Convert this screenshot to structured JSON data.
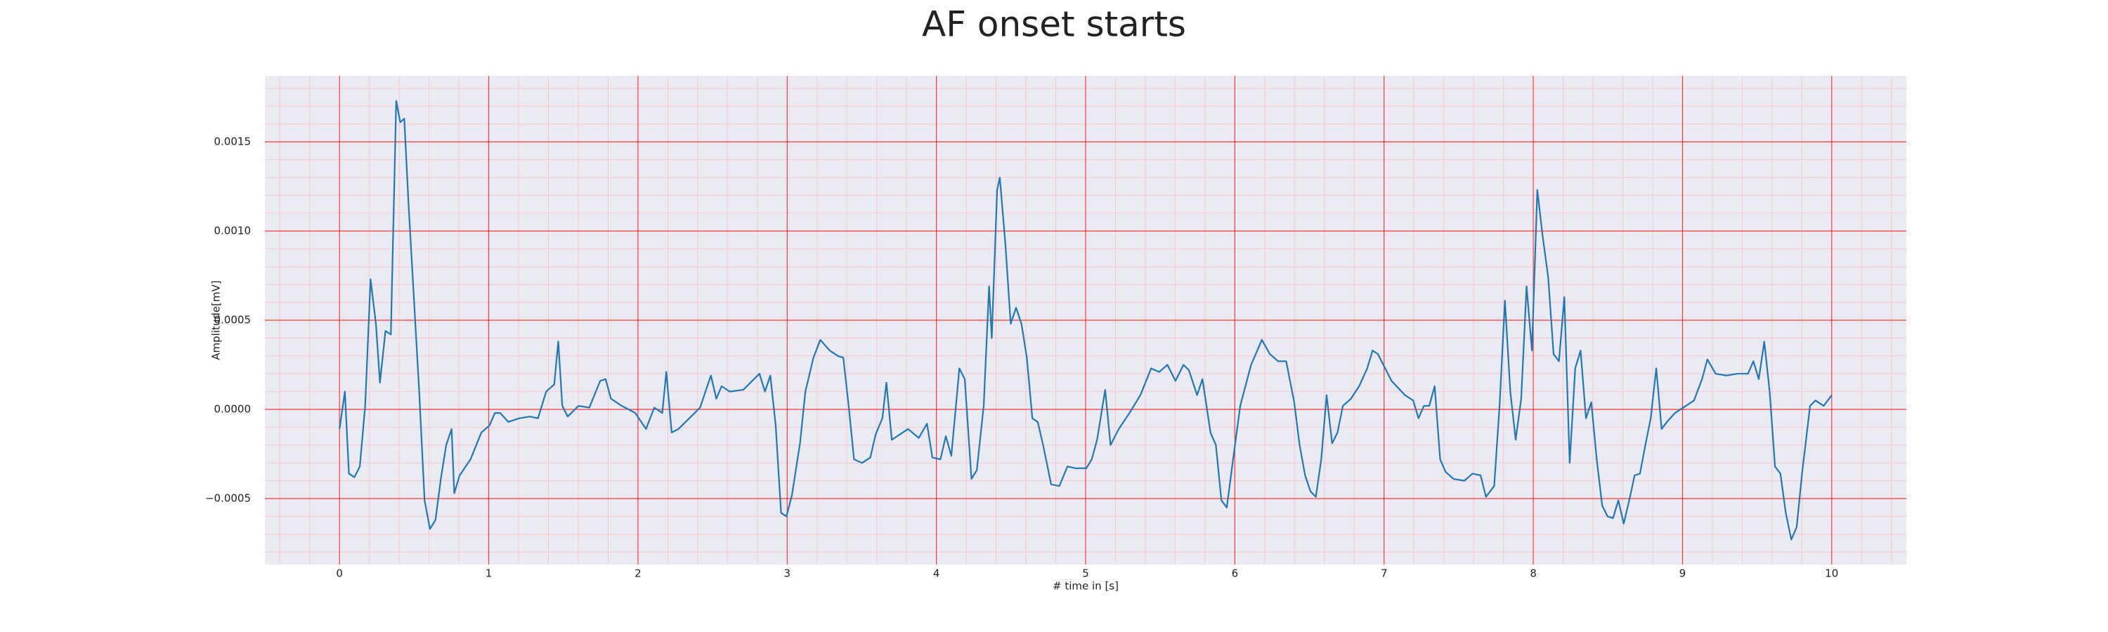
{
  "chart_data": {
    "type": "line",
    "title": "AF onset starts",
    "x_label": "# time in [s]",
    "y_label": "Amplitude[mV]",
    "color": "#1f77b4",
    "grid": true,
    "grid_color": "#ff0000",
    "minor_grid": true,
    "minor_grid_color": "#ffb6c1",
    "minor_divisions": 5,
    "background": "#eaeaf2",
    "xlim": [
      -0.5,
      10.5
    ],
    "ylim": [
      -0.00087,
      0.00187
    ],
    "xticks": [
      0,
      1,
      2,
      3,
      4,
      5,
      6,
      7,
      8,
      9,
      10
    ],
    "yticks": [
      {
        "value": -0.0005,
        "label": "−0.0005"
      },
      {
        "value": 0,
        "label": "0.0000"
      },
      {
        "value": 0.0005,
        "label": "0.0005"
      },
      {
        "value": 0.001,
        "label": "0.0010"
      },
      {
        "value": 0.0015,
        "label": "0.0015"
      }
    ],
    "x": [
      0,
      0.036,
      0.063,
      0.1,
      0.136,
      0.172,
      0.208,
      0.244,
      0.271,
      0.308,
      0.344,
      0.38,
      0.407,
      0.434,
      0.462,
      0.498,
      0.534,
      0.57,
      0.606,
      0.643,
      0.679,
      0.715,
      0.751,
      0.769,
      0.805,
      0.878,
      0.95,
      1.005,
      1.041,
      1.077,
      1.131,
      1.204,
      1.276,
      1.33,
      1.385,
      1.439,
      1.466,
      1.493,
      1.529,
      1.602,
      1.674,
      1.747,
      1.783,
      1.819,
      1.891,
      1.982,
      2.054,
      2.109,
      2.163,
      2.19,
      2.226,
      2.271,
      2.344,
      2.416,
      2.489,
      2.525,
      2.561,
      2.615,
      2.706,
      2.778,
      2.814,
      2.851,
      2.887,
      2.923,
      2.959,
      2.995,
      3.032,
      3.086,
      3.122,
      3.176,
      3.222,
      3.285,
      3.339,
      3.376,
      3.412,
      3.448,
      3.502,
      3.557,
      3.593,
      3.638,
      3.665,
      3.701,
      3.756,
      3.81,
      3.882,
      3.937,
      3.973,
      4.027,
      4.063,
      4.1,
      4.154,
      4.19,
      4.235,
      4.271,
      4.317,
      4.353,
      4.371,
      4.407,
      4.425,
      4.462,
      4.498,
      4.534,
      4.57,
      4.606,
      4.643,
      4.679,
      4.715,
      4.769,
      4.824,
      4.878,
      4.932,
      5.005,
      5.041,
      5.077,
      5.131,
      5.167,
      5.222,
      5.294,
      5.367,
      5.439,
      5.493,
      5.548,
      5.602,
      5.656,
      5.692,
      5.747,
      5.783,
      5.837,
      5.873,
      5.91,
      5.946,
      5.982,
      6.036,
      6.109,
      6.181,
      6.235,
      6.29,
      6.344,
      6.398,
      6.434,
      6.471,
      6.507,
      6.543,
      6.579,
      6.615,
      6.652,
      6.688,
      6.724,
      6.778,
      6.833,
      6.887,
      6.923,
      6.959,
      6.995,
      7.05,
      7.14,
      7.195,
      7.231,
      7.267,
      7.303,
      7.339,
      7.376,
      7.412,
      7.466,
      7.538,
      7.593,
      7.647,
      7.683,
      7.738,
      7.774,
      7.81,
      7.846,
      7.882,
      7.919,
      7.955,
      7.991,
      8.027,
      8.063,
      8.1,
      8.136,
      8.172,
      8.208,
      8.244,
      8.281,
      8.317,
      8.353,
      8.389,
      8.425,
      8.462,
      8.498,
      8.534,
      8.57,
      8.606,
      8.643,
      8.679,
      8.715,
      8.751,
      8.787,
      8.824,
      8.86,
      8.896,
      8.95,
      9.023,
      9.077,
      9.131,
      9.167,
      9.222,
      9.294,
      9.367,
      9.439,
      9.475,
      9.511,
      9.548,
      9.584,
      9.62,
      9.656,
      9.692,
      9.729,
      9.765,
      9.801,
      9.855,
      9.891,
      9.946,
      10
    ],
    "values": [
      -0.00011,
      0.0001,
      -0.00036,
      -0.00038,
      -0.00032,
      2e-05,
      0.00073,
      0.00048,
      0.00015,
      0.00044,
      0.00042,
      0.00173,
      0.00161,
      0.00163,
      0.00116,
      0.00063,
      0.0001,
      -0.00051,
      -0.00067,
      -0.00062,
      -0.00039,
      -0.0002,
      -0.00011,
      -0.00047,
      -0.00037,
      -0.00028,
      -0.00013,
      -9e-05,
      -2e-05,
      -2e-05,
      -7e-05,
      -5e-05,
      -4e-05,
      -5e-05,
      0.0001,
      0.00014,
      0.00038,
      2e-05,
      -4e-05,
      2e-05,
      1e-05,
      0.00016,
      0.00017,
      6e-05,
      2e-05,
      -2e-05,
      -0.00011,
      1e-05,
      -2e-05,
      0.00021,
      -0.00013,
      -0.00011,
      -5e-05,
      1e-05,
      0.00019,
      6e-05,
      0.00013,
      0.0001,
      0.00011,
      0.00017,
      0.0002,
      0.0001,
      0.00019,
      -9e-05,
      -0.00058,
      -0.0006,
      -0.00048,
      -0.00019,
      0.0001,
      0.00029,
      0.00039,
      0.00033,
      0.0003,
      0.00029,
      2e-05,
      -0.00028,
      -0.0003,
      -0.00027,
      -0.00014,
      -5e-05,
      0.00015,
      -0.00017,
      -0.00014,
      -0.00011,
      -0.00016,
      -8e-05,
      -0.00027,
      -0.00028,
      -0.00015,
      -0.00026,
      0.00023,
      0.00017,
      -0.00039,
      -0.00034,
      2e-05,
      0.00069,
      0.0004,
      0.00123,
      0.0013,
      0.00093,
      0.00048,
      0.00057,
      0.00048,
      0.00029,
      -5e-05,
      -7e-05,
      -0.0002,
      -0.00042,
      -0.00043,
      -0.00032,
      -0.00033,
      -0.00033,
      -0.00028,
      -0.00017,
      0.00011,
      -0.0002,
      -0.00011,
      -2e-05,
      8e-05,
      0.00023,
      0.00021,
      0.00025,
      0.00016,
      0.00025,
      0.00022,
      8e-05,
      0.00017,
      -0.00013,
      -0.0002,
      -0.00051,
      -0.00055,
      -0.00032,
      2e-05,
      0.00025,
      0.00039,
      0.00031,
      0.00027,
      0.00027,
      4e-05,
      -0.0002,
      -0.00037,
      -0.00046,
      -0.00049,
      -0.00028,
      8e-05,
      -0.00019,
      -0.00013,
      2e-05,
      6e-05,
      0.00013,
      0.00023,
      0.00033,
      0.00031,
      0.00025,
      0.00016,
      8e-05,
      5e-05,
      -5e-05,
      2e-05,
      2e-05,
      0.00013,
      -0.00028,
      -0.00035,
      -0.00039,
      -0.0004,
      -0.00036,
      -0.00037,
      -0.00049,
      -0.00043,
      2e-05,
      0.00061,
      0.0001,
      -0.00017,
      6e-05,
      0.00069,
      0.00033,
      0.00123,
      0.00097,
      0.00074,
      0.00031,
      0.00027,
      0.00063,
      -0.0003,
      0.00023,
      0.00033,
      -5e-05,
      4e-05,
      -0.00028,
      -0.00054,
      -0.0006,
      -0.00061,
      -0.00051,
      -0.00064,
      -0.00051,
      -0.00037,
      -0.00036,
      -0.0002,
      -5e-05,
      0.00023,
      -0.00011,
      -7e-05,
      -2e-05,
      2e-05,
      5e-05,
      0.00017,
      0.00028,
      0.0002,
      0.00019,
      0.0002,
      0.0002,
      0.00027,
      0.00017,
      0.00038,
      0.0001,
      -0.00032,
      -0.00036,
      -0.00058,
      -0.00073,
      -0.00066,
      -0.00036,
      2e-05,
      5e-05,
      2e-05,
      8e-05
    ]
  }
}
